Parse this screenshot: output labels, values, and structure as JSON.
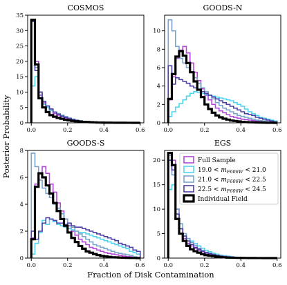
{
  "figure": {
    "xlabel": "Fraction of Disk Contamination",
    "ylabel": "Posterior Probability"
  },
  "colors": {
    "full_sample": "#b347d9",
    "bin_19_21": "#4fd3ef",
    "bin_21_225": "#7aa3cc",
    "bin_225_245": "#4a3fa3",
    "individual": "#000000"
  },
  "chart_data": [
    {
      "type": "line",
      "title": "COSMOS",
      "xlim": [
        -0.02,
        0.62
      ],
      "ylim": [
        0,
        35
      ],
      "xticks": [
        0.0,
        0.2,
        0.4,
        0.6
      ],
      "yticks": [
        0,
        5,
        10,
        15,
        20,
        25,
        30,
        35
      ],
      "bin_edges": [
        0.0,
        0.02,
        0.04,
        0.06,
        0.08,
        0.1,
        0.12,
        0.14,
        0.16,
        0.18,
        0.2,
        0.22,
        0.24,
        0.26,
        0.28,
        0.3,
        0.32,
        0.34,
        0.36,
        0.38,
        0.4,
        0.42,
        0.44,
        0.46,
        0.48,
        0.5,
        0.52,
        0.54,
        0.56,
        0.58,
        0.6
      ],
      "series": [
        {
          "name": "Full Sample",
          "color_key": "full_sample",
          "width": 1.6,
          "values": [
            33,
            20,
            9,
            6.5,
            5,
            4,
            3,
            2.5,
            2,
            1.5,
            1.2,
            0.9,
            0.7,
            0.5,
            0.4,
            0.3,
            0.25,
            0.2,
            0.15,
            0.1,
            0.1,
            0.08,
            0.06,
            0.05,
            0.04,
            0.03,
            0.02,
            0.02,
            0.01,
            0.01
          ]
        },
        {
          "name": "19.0 < m_F606W < 21.0",
          "color_key": "bin_19_21",
          "width": 1.6,
          "values": [
            12,
            15,
            8,
            6,
            5,
            4,
            3.5,
            3,
            2.5,
            2,
            1.5,
            1.2,
            0.9,
            0.7,
            0.5,
            0.4,
            0.3,
            0.2,
            0.15,
            0.1,
            0.08,
            0.06,
            0.05,
            0.04,
            0.03,
            0.02,
            0.02,
            0.01,
            0.01,
            0.0
          ]
        },
        {
          "name": "21.0 < m_F606W < 22.5",
          "color_key": "bin_21_225",
          "width": 1.6,
          "values": [
            33,
            18,
            10,
            7,
            5.5,
            4.5,
            3.5,
            3,
            2.5,
            2,
            1.6,
            1.2,
            0.9,
            0.7,
            0.5,
            0.4,
            0.3,
            0.2,
            0.15,
            0.1,
            0.08,
            0.06,
            0.05,
            0.04,
            0.03,
            0.02,
            0.02,
            0.01,
            0.01,
            0.0
          ]
        },
        {
          "name": "22.5 < m_F606W < 24.5",
          "color_key": "bin_225_245",
          "width": 1.6,
          "values": [
            33,
            17,
            10,
            7,
            5.5,
            4.5,
            3.5,
            2.8,
            2.2,
            1.8,
            1.4,
            1.1,
            0.8,
            0.6,
            0.5,
            0.4,
            0.3,
            0.2,
            0.15,
            0.1,
            0.08,
            0.06,
            0.05,
            0.04,
            0.03,
            0.02,
            0.02,
            0.01,
            0.01,
            0.0
          ]
        },
        {
          "name": "Individual Field",
          "color_key": "individual",
          "width": 3.2,
          "values": [
            33.5,
            19,
            8,
            5,
            3.5,
            2.5,
            2,
            1.6,
            1.3,
            1,
            0.8,
            0.6,
            0.5,
            0.4,
            0.3,
            0.25,
            0.2,
            0.15,
            0.1,
            0.08,
            0.06,
            0.05,
            0.04,
            0.03,
            0.02,
            0.02,
            0.01,
            0.01,
            0.0,
            0.0
          ]
        }
      ]
    },
    {
      "type": "line",
      "title": "GOODS-N",
      "xlim": [
        -0.02,
        0.62
      ],
      "ylim": [
        0,
        11.7
      ],
      "xticks": [
        0.0,
        0.2,
        0.4,
        0.6
      ],
      "yticks": [
        0,
        2,
        4,
        6,
        8,
        10
      ],
      "bin_edges": [
        0.0,
        0.02,
        0.04,
        0.06,
        0.08,
        0.1,
        0.12,
        0.14,
        0.16,
        0.18,
        0.2,
        0.22,
        0.24,
        0.26,
        0.28,
        0.3,
        0.32,
        0.34,
        0.36,
        0.38,
        0.4,
        0.42,
        0.44,
        0.46,
        0.48,
        0.5,
        0.52,
        0.54,
        0.56,
        0.58,
        0.6
      ],
      "series": [
        {
          "name": "Full Sample",
          "color_key": "full_sample",
          "width": 1.6,
          "values": [
            2.5,
            5.0,
            7.0,
            7.9,
            8.3,
            7.6,
            6.5,
            5.5,
            4.6,
            3.7,
            3.0,
            2.5,
            2.0,
            1.6,
            1.3,
            1.1,
            0.9,
            0.7,
            0.6,
            0.5,
            0.4,
            0.35,
            0.3,
            0.25,
            0.2,
            0.15,
            0.1,
            0.08,
            0.05,
            0.03
          ]
        },
        {
          "name": "19.0 < m_F606W < 21.0",
          "color_key": "bin_19_21",
          "width": 1.6,
          "values": [
            0.7,
            1.2,
            1.7,
            2.1,
            2.5,
            2.9,
            3.2,
            3.4,
            3.3,
            3.2,
            3.1,
            3.0,
            2.9,
            2.8,
            2.7,
            2.6,
            2.5,
            2.4,
            2.2,
            2.0,
            1.8,
            1.5,
            1.2,
            1.0,
            0.8,
            0.6,
            0.5,
            0.4,
            0.3,
            0.2
          ]
        },
        {
          "name": "21.0 < m_F606W < 22.5",
          "color_key": "bin_21_225",
          "width": 1.6,
          "values": [
            11.2,
            10.0,
            8.3,
            7.0,
            6.5,
            6.0,
            5.5,
            4.9,
            4.3,
            3.8,
            3.4,
            3.0,
            2.6,
            2.2,
            1.9,
            1.6,
            1.4,
            1.2,
            1.0,
            0.8,
            0.7,
            0.6,
            0.5,
            0.4,
            0.3,
            0.25,
            0.2,
            0.15,
            0.1,
            0.05
          ]
        },
        {
          "name": "22.5 < m_F606W < 24.5",
          "color_key": "bin_225_245",
          "width": 1.6,
          "values": [
            6.2,
            4.2,
            4.9,
            4.7,
            4.5,
            4.3,
            4.0,
            3.8,
            3.6,
            3.4,
            3.2,
            3.0,
            2.8,
            2.6,
            2.4,
            2.2,
            2.0,
            1.8,
            1.6,
            1.4,
            1.2,
            1.0,
            0.9,
            0.8,
            0.6,
            0.5,
            0.4,
            0.3,
            0.2,
            0.1
          ]
        },
        {
          "name": "Individual Field",
          "color_key": "individual",
          "width": 3.2,
          "values": [
            2.6,
            5.3,
            7.2,
            7.8,
            7.3,
            6.5,
            5.5,
            4.5,
            3.6,
            2.8,
            2.0,
            1.5,
            1.1,
            0.8,
            0.6,
            0.45,
            0.35,
            0.25,
            0.2,
            0.15,
            0.1,
            0.08,
            0.06,
            0.05,
            0.04,
            0.03,
            0.02,
            0.01,
            0.01,
            0.0
          ]
        }
      ]
    },
    {
      "type": "line",
      "title": "GOODS-S",
      "xlim": [
        -0.02,
        0.62
      ],
      "ylim": [
        0,
        8.0
      ],
      "xticks": [
        0.0,
        0.2,
        0.4,
        0.6
      ],
      "yticks": [
        0,
        2,
        4,
        6,
        8
      ],
      "bin_edges": [
        0.0,
        0.02,
        0.04,
        0.06,
        0.08,
        0.1,
        0.12,
        0.14,
        0.16,
        0.18,
        0.2,
        0.22,
        0.24,
        0.26,
        0.28,
        0.3,
        0.32,
        0.34,
        0.36,
        0.38,
        0.4,
        0.42,
        0.44,
        0.46,
        0.48,
        0.5,
        0.52,
        0.54,
        0.56,
        0.58,
        0.6
      ],
      "series": [
        {
          "name": "Full Sample",
          "color_key": "full_sample",
          "width": 1.6,
          "values": [
            1.5,
            5.5,
            6.3,
            6.8,
            6.3,
            5.5,
            4.9,
            4.1,
            3.5,
            2.9,
            2.4,
            2.0,
            1.7,
            1.4,
            1.2,
            1.0,
            0.8,
            0.7,
            0.6,
            0.5,
            0.4,
            0.35,
            0.3,
            0.25,
            0.2,
            0.15,
            0.12,
            0.1,
            0.08,
            0.05
          ]
        },
        {
          "name": "19.0 < m_F606W < 21.0",
          "color_key": "bin_19_21",
          "width": 1.6,
          "values": [
            0.3,
            1.1,
            1.9,
            2.8,
            2.5,
            2.9,
            2.7,
            2.5,
            2.4,
            2.3,
            2.2,
            2.1,
            2.0,
            1.9,
            1.9,
            1.8,
            1.7,
            1.6,
            1.5,
            1.4,
            1.3,
            1.2,
            1.1,
            1.0,
            0.9,
            0.8,
            0.7,
            0.5,
            0.4,
            0.3
          ]
        },
        {
          "name": "21.0 < m_F606W < 22.5",
          "color_key": "bin_21_225",
          "width": 1.6,
          "values": [
            7.8,
            6.8,
            5.8,
            5.2,
            4.8,
            4.5,
            4.0,
            3.7,
            3.3,
            2.9,
            2.6,
            2.3,
            2.0,
            1.8,
            1.6,
            1.4,
            1.2,
            1.0,
            0.9,
            0.8,
            0.7,
            0.6,
            0.5,
            0.4,
            0.35,
            0.3,
            0.25,
            0.2,
            0.1,
            0.05
          ]
        },
        {
          "name": "22.5 < m_F606W < 24.5",
          "color_key": "bin_225_245",
          "width": 1.6,
          "values": [
            2.0,
            1.4,
            2.0,
            2.6,
            3.0,
            2.9,
            2.8,
            2.6,
            2.6,
            2.5,
            2.6,
            2.4,
            2.3,
            2.3,
            2.2,
            2.1,
            2.0,
            1.9,
            1.8,
            1.7,
            1.6,
            1.5,
            1.4,
            1.3,
            1.1,
            1.0,
            0.9,
            0.8,
            0.6,
            0.5
          ]
        },
        {
          "name": "Individual Field",
          "color_key": "individual",
          "width": 3.2,
          "values": [
            1.4,
            5.3,
            6.3,
            6.0,
            5.4,
            4.8,
            4.1,
            3.5,
            2.9,
            2.4,
            1.9,
            1.5,
            1.2,
            0.9,
            0.7,
            0.5,
            0.4,
            0.3,
            0.22,
            0.16,
            0.12,
            0.09,
            0.06,
            0.05,
            0.04,
            0.03,
            0.02,
            0.01,
            0.01,
            0.0
          ]
        }
      ]
    },
    {
      "type": "line",
      "title": "EGS",
      "xlim": [
        -0.02,
        0.62
      ],
      "ylim": [
        0,
        22
      ],
      "xticks": [
        0.0,
        0.2,
        0.4,
        0.6
      ],
      "yticks": [
        0,
        5,
        10,
        15,
        20
      ],
      "legend": {
        "location": "upper right"
      },
      "bin_edges": [
        0.0,
        0.02,
        0.04,
        0.06,
        0.08,
        0.1,
        0.12,
        0.14,
        0.16,
        0.18,
        0.2,
        0.22,
        0.24,
        0.26,
        0.28,
        0.3,
        0.32,
        0.34,
        0.36,
        0.38,
        0.4,
        0.42,
        0.44,
        0.46,
        0.48,
        0.5,
        0.52,
        0.54,
        0.56,
        0.58,
        0.6
      ],
      "series": [
        {
          "name": "Full Sample",
          "color_key": "full_sample",
          "width": 1.6,
          "values": [
            21,
            20,
            10,
            6,
            4,
            3,
            2.5,
            2,
            1.6,
            1.3,
            1,
            0.8,
            0.6,
            0.5,
            0.4,
            0.3,
            0.25,
            0.2,
            0.15,
            0.1,
            0.08,
            0.06,
            0.05,
            0.04,
            0.03,
            0.02,
            0.02,
            0.01,
            0.01,
            0.0
          ]
        },
        {
          "name": "19.0 < m_F606W < 21.0",
          "color_key": "bin_19_21",
          "width": 1.6,
          "values": [
            14,
            15,
            9,
            6,
            4.5,
            4,
            3.5,
            3,
            2.5,
            2,
            1.6,
            1.3,
            1,
            0.8,
            0.6,
            0.5,
            0.4,
            0.3,
            0.2,
            0.15,
            0.1,
            0.08,
            0.06,
            0.05,
            0.04,
            0.03,
            0.02,
            0.01,
            0.01,
            0.0
          ]
        },
        {
          "name": "21.0 < m_F606W < 22.5",
          "color_key": "bin_21_225",
          "width": 1.6,
          "values": [
            21,
            17,
            10,
            7,
            5,
            4,
            3.2,
            2.6,
            2,
            1.6,
            1.2,
            1,
            0.8,
            0.6,
            0.5,
            0.4,
            0.3,
            0.2,
            0.15,
            0.1,
            0.08,
            0.06,
            0.05,
            0.04,
            0.03,
            0.02,
            0.02,
            0.01,
            0.01,
            0.0
          ]
        },
        {
          "name": "22.5 < m_F606W < 24.5",
          "color_key": "bin_225_245",
          "width": 1.6,
          "values": [
            20,
            18,
            9,
            6,
            4.5,
            3.5,
            2.8,
            2.2,
            1.8,
            1.4,
            1.1,
            0.9,
            0.7,
            0.5,
            0.4,
            0.3,
            0.25,
            0.2,
            0.15,
            0.1,
            0.08,
            0.06,
            0.05,
            0.04,
            0.03,
            0.02,
            0.02,
            0.01,
            0.01,
            0.0
          ]
        },
        {
          "name": "Individual Field",
          "color_key": "individual",
          "width": 3.2,
          "values": [
            21.5,
            19,
            8,
            5,
            3.5,
            2.5,
            1.8,
            1.4,
            1.1,
            0.8,
            0.6,
            0.5,
            0.4,
            0.3,
            0.2,
            0.15,
            0.1,
            0.08,
            0.06,
            0.05,
            0.04,
            0.03,
            0.02,
            0.02,
            0.01,
            0.01,
            0.0,
            0.0,
            0.0,
            0.0
          ]
        }
      ]
    }
  ]
}
